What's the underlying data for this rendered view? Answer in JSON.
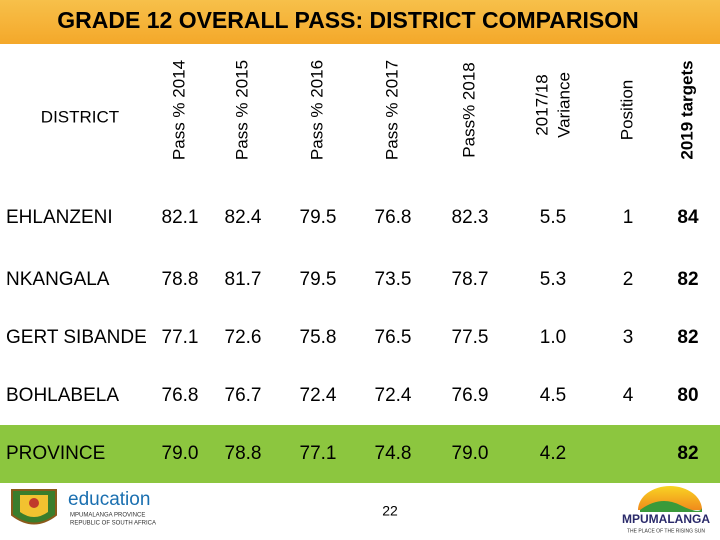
{
  "title": "GRADE 12 OVERALL PASS: DISTRICT COMPARISON",
  "table": {
    "headers": [
      "DISTRICT",
      "Pass % 2014",
      "Pass % 2015",
      "Pass % 2016",
      "Pass % 2017",
      "Pass% 2018",
      [
        "2017/18",
        "Variance"
      ],
      "Position",
      "2019 targets"
    ],
    "rows": [
      [
        "EHLANZENI",
        "82.1",
        "82.4",
        "79.5",
        "76.8",
        "82.3",
        "5.5",
        "1",
        "84"
      ],
      [
        "NKANGALA",
        "78.8",
        "81.7",
        "79.5",
        "73.5",
        "78.7",
        "5.3",
        "2",
        "82"
      ],
      [
        "GERT SIBANDE",
        "77.1",
        "72.6",
        "75.8",
        "76.5",
        "77.5",
        "1.0",
        "3",
        "82"
      ],
      [
        "BOHLABELA",
        "76.8",
        "76.7",
        "72.4",
        "72.4",
        "76.9",
        "4.5",
        "4",
        "80"
      ],
      [
        "PROVINCE",
        "79.0",
        "78.8",
        "77.1",
        "74.8",
        "79.0",
        "4.2",
        null,
        "82"
      ]
    ]
  },
  "footer": {
    "left_logo": {
      "name": "education",
      "line1": "MPUMALANGA PROVINCE",
      "line2": "REPUBLIC OF SOUTH AFRICA"
    },
    "page_number": "22",
    "right_logo": {
      "name": "MPUMALANGA",
      "tagline": "THE PLACE OF THE RISING SUN"
    }
  }
}
